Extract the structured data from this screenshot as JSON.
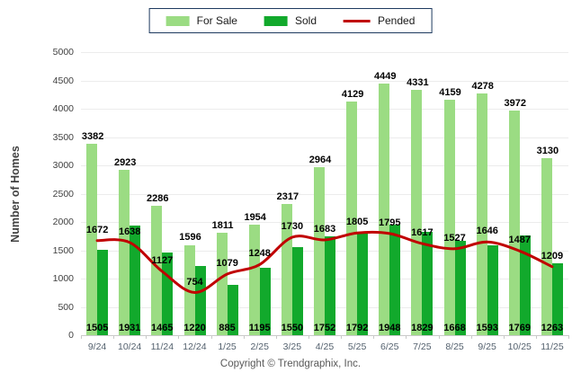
{
  "footer": {
    "copyright": "Copyright © Trendgraphix, Inc."
  },
  "chart_data": {
    "type": "bar",
    "title": "",
    "xlabel": "",
    "ylabel": "Number of Homes",
    "ylim": [
      0,
      5000
    ],
    "yticks": [
      0,
      500,
      1000,
      1500,
      2000,
      2500,
      3000,
      3500,
      4000,
      4500,
      5000
    ],
    "grid": true,
    "legend_position": "top",
    "categories": [
      "9/24",
      "10/24",
      "11/24",
      "12/24",
      "1/25",
      "2/25",
      "3/25",
      "4/25",
      "5/25",
      "6/25",
      "7/25",
      "8/25",
      "9/25",
      "10/25",
      "11/25"
    ],
    "series": [
      {
        "name": "For Sale",
        "type": "bar",
        "color": "#9BDC83",
        "values": [
          3382,
          2923,
          2286,
          1596,
          1811,
          1954,
          2317,
          2964,
          4129,
          4449,
          4331,
          4159,
          4278,
          3972,
          3130
        ]
      },
      {
        "name": "Sold",
        "type": "bar",
        "color": "#12A92C",
        "values": [
          1505,
          1931,
          1465,
          1220,
          885,
          1195,
          1550,
          1752,
          1792,
          1948,
          1829,
          1668,
          1593,
          1769,
          1263
        ]
      },
      {
        "name": "Pended",
        "type": "line",
        "color": "#C00000",
        "values": [
          1672,
          1638,
          1127,
          754,
          1079,
          1248,
          1730,
          1683,
          1805,
          1795,
          1617,
          1527,
          1646,
          1487,
          1209
        ]
      }
    ]
  }
}
